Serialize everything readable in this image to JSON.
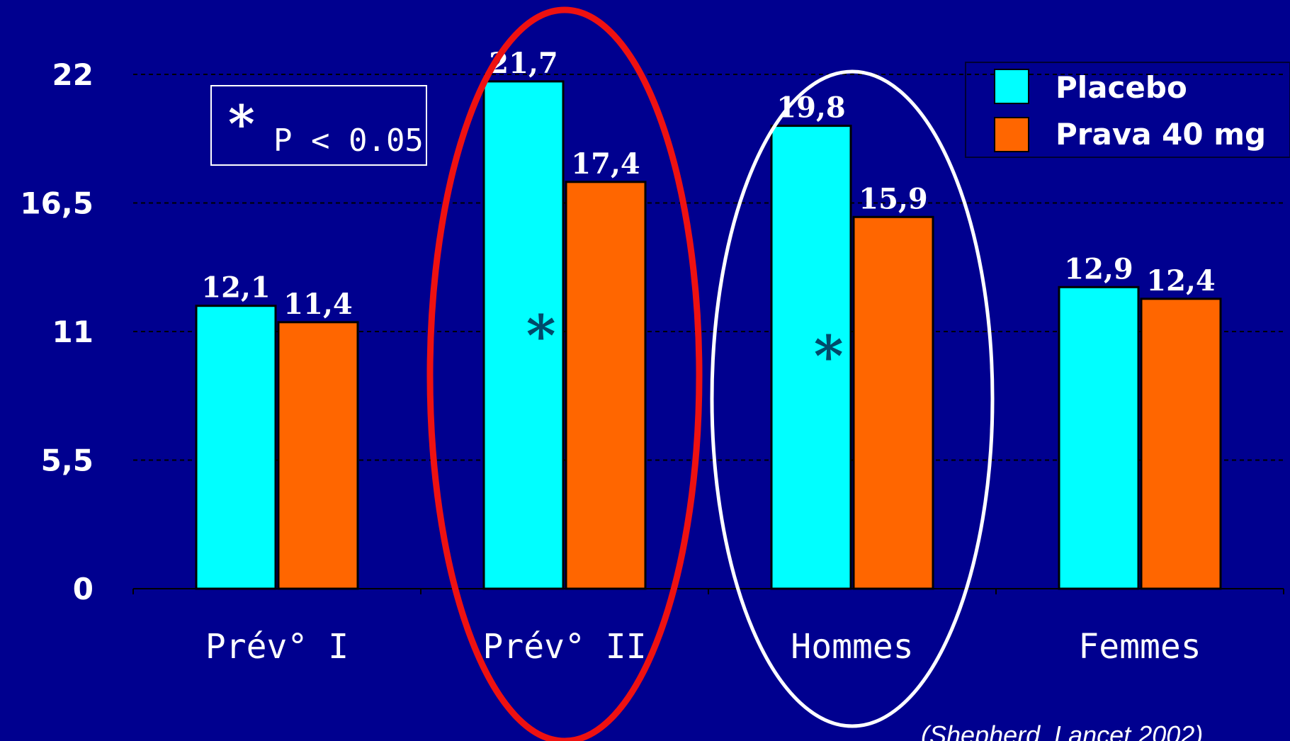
{
  "chart_data": {
    "type": "bar",
    "categories": [
      "Prév° I",
      "Prév° II",
      "Hommes",
      "Femmes"
    ],
    "series": [
      {
        "name": "Placebo",
        "color": "#00ffff",
        "values": [
          12.1,
          21.7,
          19.8,
          12.9
        ],
        "labels": [
          "12,1",
          "21,7",
          "19,8",
          "12,9"
        ]
      },
      {
        "name": "Prava 40 mg",
        "color": "#ff6600",
        "values": [
          11.4,
          17.4,
          15.9,
          12.4
        ],
        "labels": [
          "11,4",
          "17,4",
          "15,9",
          "12,4"
        ]
      }
    ],
    "y_ticks": [
      {
        "value": 0,
        "label": "0"
      },
      {
        "value": 5.5,
        "label": "5,5"
      },
      {
        "value": 11,
        "label": "11"
      },
      {
        "value": 16.5,
        "label": "16,5"
      },
      {
        "value": 22,
        "label": "22"
      }
    ],
    "ylim": [
      0,
      22
    ],
    "grid": true,
    "legend_position": "top-right",
    "significance_marker": "*",
    "significant_categories": [
      "Prév° II",
      "Hommes"
    ],
    "highlighted_categories": [
      {
        "category": "Prév° II",
        "color": "#ee1111"
      },
      {
        "category": "Hommes",
        "color": "#ffffff"
      }
    ],
    "p_note": {
      "star": "*",
      "text": "P < 0.05"
    },
    "source": "(Shepherd, Lancet 2002)"
  }
}
